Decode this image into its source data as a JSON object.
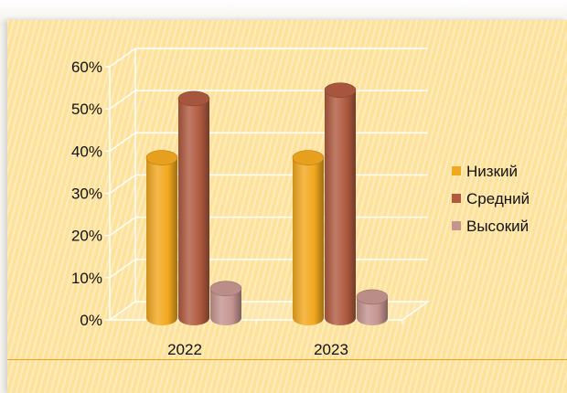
{
  "chart_data": {
    "type": "bar",
    "categories": [
      "2022",
      "2023"
    ],
    "series": [
      {
        "name": "Низкий",
        "values": [
          38,
          38
        ],
        "color": "#f2a81e"
      },
      {
        "name": "Средний",
        "values": [
          52,
          54
        ],
        "color": "#b05a40"
      },
      {
        "name": "Высокий",
        "values": [
          7,
          5
        ],
        "color": "#c49490"
      }
    ],
    "y_ticks": [
      "0%",
      "10%",
      "20%",
      "30%",
      "40%",
      "50%",
      "60%"
    ],
    "ylim": [
      0,
      60
    ],
    "y_unit": "%",
    "grid": true,
    "legend_position": "right",
    "style": "3d-cylinder"
  }
}
